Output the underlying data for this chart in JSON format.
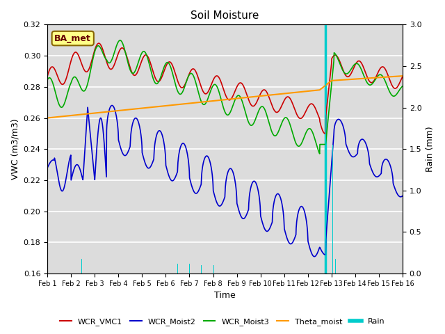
{
  "title": "Soil Moisture",
  "xlabel": "Time",
  "ylabel_left": "VWC (m3/m3)",
  "ylabel_right": "Rain (mm)",
  "ylim_left": [
    0.16,
    0.32
  ],
  "ylim_right": [
    0.0,
    3.0
  ],
  "yticks_left": [
    0.16,
    0.18,
    0.2,
    0.22,
    0.24,
    0.26,
    0.28,
    0.3,
    0.32
  ],
  "yticks_right": [
    0.0,
    0.5,
    1.0,
    1.5,
    2.0,
    2.5,
    3.0
  ],
  "xtick_labels": [
    "Feb 1",
    "Feb 2",
    "Feb 3",
    "Feb 4",
    "Feb 5",
    "Feb 6",
    "Feb 7",
    "Feb 8",
    "Feb 9",
    "Feb 10",
    "Feb 11",
    "Feb 12",
    "Feb 13",
    "Feb 14",
    "Feb 15",
    "Feb 16"
  ],
  "n_points": 1500,
  "color_wcr_vmc1": "#cc0000",
  "color_wcr_moist2": "#0000cc",
  "color_wcr_moist3": "#00aa00",
  "color_theta_moist": "#ff9900",
  "color_rain": "#00cccc",
  "color_vline": "#00cccc",
  "bg_color": "#dcdcdc",
  "label_vmc1": "WCR_VMC1",
  "label_moist2": "WCR_Moist2",
  "label_moist3": "WCR_Moist3",
  "label_theta": "Theta_moist",
  "label_rain": "Rain",
  "annotation_text": "BA_met",
  "vline_day": 11.75
}
